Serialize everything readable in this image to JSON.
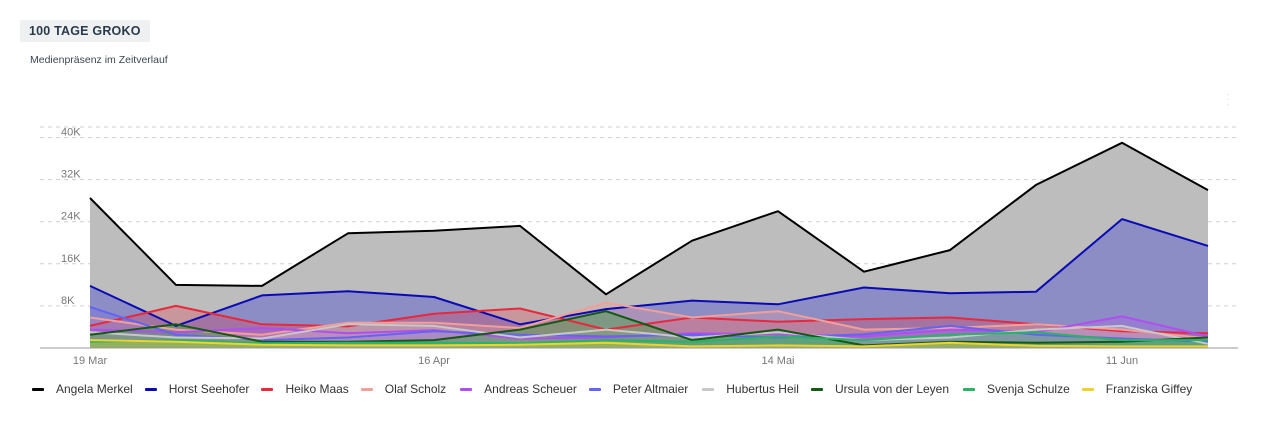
{
  "header": {
    "title": "100 TAGE GROKO",
    "subtitle": "Medienpräsenz im Zeitverlauf"
  },
  "chart_data": {
    "type": "area",
    "x": [
      "2018-03-19",
      "2018-03-26",
      "2018-04-02",
      "2018-04-09",
      "2018-04-16",
      "2018-04-23",
      "2018-04-30",
      "2018-05-07",
      "2018-05-14",
      "2018-05-21",
      "2018-05-28",
      "2018-06-04",
      "2018-06-11",
      "2018-06-18"
    ],
    "x_tick_labels": [
      {
        "x": "2018-03-19",
        "label": "19 Mar"
      },
      {
        "x": "2018-04-16",
        "label": "16 Apr"
      },
      {
        "x": "2018-05-14",
        "label": "14 Mai"
      },
      {
        "x": "2018-06-11",
        "label": "11 Jun"
      }
    ],
    "y_ticks": [
      8000,
      16000,
      24000,
      32000,
      40000
    ],
    "y_tick_labels": [
      "8K",
      "16K",
      "24K",
      "32K",
      "40K"
    ],
    "ylim": [
      0,
      42000
    ],
    "grid": "horizontal dashed",
    "legend_position": "bottom",
    "series": [
      {
        "name": "Angela Merkel",
        "color": "#000000",
        "fill": "#bdbdbd",
        "fill_opacity": 1.0,
        "values": [
          28500,
          12000,
          11800,
          21800,
          22300,
          23200,
          10200,
          20400,
          26000,
          14500,
          18600,
          31000,
          39000,
          30000
        ]
      },
      {
        "name": "Horst Seehofer",
        "color": "#0a0ab4",
        "fill": "#7d7dc8",
        "fill_opacity": 0.75,
        "values": [
          11800,
          4200,
          10000,
          10800,
          9700,
          4500,
          7400,
          9000,
          8300,
          11500,
          10400,
          10700,
          24500,
          19400
        ]
      },
      {
        "name": "Heiko Maas",
        "color": "#e8283c",
        "fill": "#e8283c",
        "fill_opacity": 0.25,
        "values": [
          4200,
          8000,
          4500,
          4100,
          6500,
          7500,
          3500,
          5800,
          5000,
          5500,
          5800,
          4500,
          3200,
          2800
        ]
      },
      {
        "name": "Olaf Scholz",
        "color": "#f0a09a",
        "fill": "#f0a09a",
        "fill_opacity": 0.3,
        "values": [
          5800,
          3500,
          2500,
          4800,
          4800,
          3800,
          8600,
          5800,
          7000,
          3500,
          3800,
          4500,
          3500,
          1800
        ]
      },
      {
        "name": "Andreas Scheuer",
        "color": "#b04ef0",
        "fill": "#b04ef0",
        "fill_opacity": 0.25,
        "values": [
          3500,
          3000,
          3800,
          2800,
          3400,
          1800,
          2000,
          2800,
          2600,
          2200,
          3500,
          3000,
          6000,
          2200
        ]
      },
      {
        "name": "Peter Altmaier",
        "color": "#6464f0",
        "fill": "#6464f0",
        "fill_opacity": 0.25,
        "values": [
          7800,
          2500,
          1500,
          2000,
          3200,
          2500,
          2200,
          2500,
          2000,
          2600,
          4200,
          2500,
          1800,
          1200
        ]
      },
      {
        "name": "Hubertus Heil",
        "color": "#c8c8c8",
        "fill": "#c8c8c8",
        "fill_opacity": 0.3,
        "values": [
          3000,
          2000,
          1800,
          4500,
          4200,
          2000,
          3500,
          2000,
          3000,
          1500,
          2000,
          3500,
          4200,
          800
        ]
      },
      {
        "name": "Ursula von der Leyen",
        "color": "#145a14",
        "fill": "#50a050",
        "fill_opacity": 0.5,
        "values": [
          2500,
          4500,
          1200,
          1200,
          1500,
          3500,
          7000,
          1500,
          3500,
          500,
          1200,
          1000,
          1200,
          2000
        ]
      },
      {
        "name": "Svenja Schulze",
        "color": "#28b464",
        "fill": "#28b464",
        "fill_opacity": 0.35,
        "values": [
          1200,
          1500,
          900,
          1000,
          1000,
          900,
          1500,
          1200,
          2200,
          1500,
          2500,
          3000,
          1500,
          1500
        ]
      },
      {
        "name": "Franziska Giffey",
        "color": "#f0d22d",
        "fill": "#f0d22d",
        "fill_opacity": 0.35,
        "values": [
          1500,
          1200,
          600,
          500,
          500,
          600,
          1000,
          300,
          500,
          300,
          1000,
          400,
          300,
          300
        ]
      }
    ]
  }
}
